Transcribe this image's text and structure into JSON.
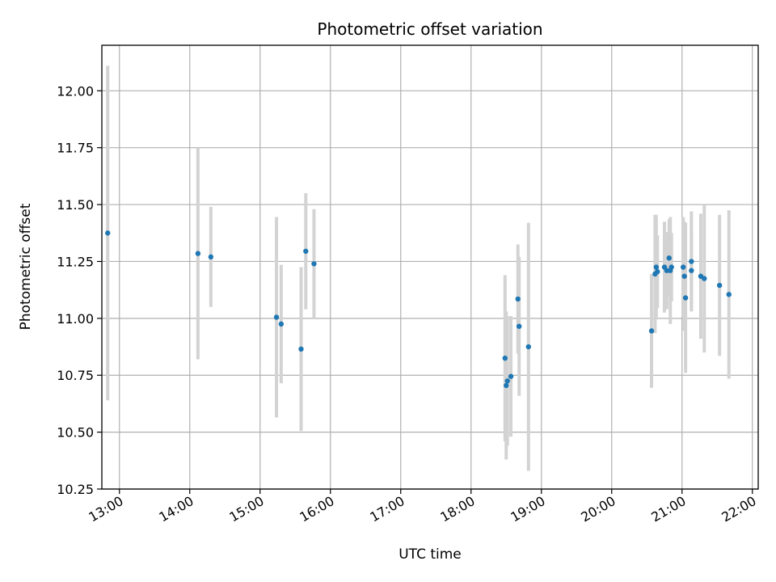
{
  "chart_data": {
    "type": "scatter",
    "title": "Photometric offset variation",
    "xlabel": "UTC time",
    "ylabel": "Photometric offset",
    "xlim": [
      "12:45",
      "22:05"
    ],
    "ylim": [
      10.25,
      12.2
    ],
    "grid": true,
    "x_ticks": [
      "13:00",
      "14:00",
      "15:00",
      "16:00",
      "17:00",
      "18:00",
      "19:00",
      "20:00",
      "21:00",
      "22:00"
    ],
    "y_ticks": [
      "10.25",
      "10.50",
      "10.75",
      "11.00",
      "11.25",
      "11.50",
      "11.75",
      "12.00"
    ],
    "colors": {
      "point": "#1f77b4",
      "errorbar": "#d3d3d3",
      "grid": "#b0b0b0"
    },
    "points": [
      {
        "x": "12:50",
        "y": 11.375,
        "err": 0.735
      },
      {
        "x": "14:07",
        "y": 11.285,
        "err": 0.465
      },
      {
        "x": "14:18",
        "y": 11.27,
        "err": 0.22
      },
      {
        "x": "15:14",
        "y": 11.005,
        "err": 0.44
      },
      {
        "x": "15:18",
        "y": 10.975,
        "err": 0.26
      },
      {
        "x": "15:35",
        "y": 10.865,
        "err": 0.36
      },
      {
        "x": "15:39",
        "y": 11.295,
        "err": 0.255
      },
      {
        "x": "15:46",
        "y": 11.24,
        "err": 0.24
      },
      {
        "x": "18:29",
        "y": 10.825,
        "err": 0.365
      },
      {
        "x": "18:30",
        "y": 10.705,
        "err": 0.325
      },
      {
        "x": "18:31",
        "y": 10.725,
        "err": 0.285
      },
      {
        "x": "18:34",
        "y": 10.745,
        "err": 0.265
      },
      {
        "x": "18:40",
        "y": 11.085,
        "err": 0.24
      },
      {
        "x": "18:41",
        "y": 10.965,
        "err": 0.305
      },
      {
        "x": "18:49",
        "y": 10.875,
        "err": 0.545
      },
      {
        "x": "20:34",
        "y": 10.945,
        "err": 0.25
      },
      {
        "x": "20:37",
        "y": 11.195,
        "err": 0.26
      },
      {
        "x": "20:38",
        "y": 11.225,
        "err": 0.23
      },
      {
        "x": "20:39",
        "y": 11.205,
        "err": 0.16
      },
      {
        "x": "20:45",
        "y": 11.225,
        "err": 0.2
      },
      {
        "x": "20:47",
        "y": 11.21,
        "err": 0.17
      },
      {
        "x": "20:49",
        "y": 11.265,
        "err": 0.17
      },
      {
        "x": "20:50",
        "y": 11.21,
        "err": 0.235
      },
      {
        "x": "20:51",
        "y": 11.225,
        "err": 0.15
      },
      {
        "x": "21:01",
        "y": 11.225,
        "err": 0.22
      },
      {
        "x": "21:02",
        "y": 11.185,
        "err": 0.24
      },
      {
        "x": "21:03",
        "y": 11.09,
        "err": 0.33
      },
      {
        "x": "21:08",
        "y": 11.21,
        "err": 0.175
      },
      {
        "x": "21:08",
        "y": 11.25,
        "err": 0.22
      },
      {
        "x": "21:16",
        "y": 11.185,
        "err": 0.275
      },
      {
        "x": "21:19",
        "y": 11.175,
        "err": 0.325
      },
      {
        "x": "21:32",
        "y": 11.145,
        "err": 0.31
      },
      {
        "x": "21:40",
        "y": 11.105,
        "err": 0.37
      }
    ]
  }
}
